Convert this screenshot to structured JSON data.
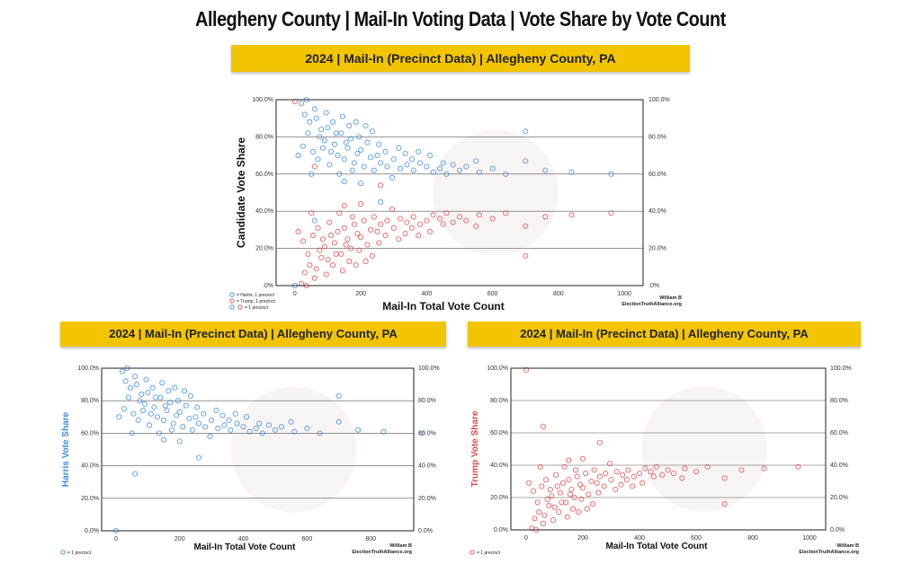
{
  "page_title": "Allegheny County | Mail-In Voting Data | Vote Share by Vote Count",
  "colors": {
    "harris": "#3a8be0",
    "trump": "#e04848",
    "banner": "#f2c500"
  },
  "chart_data": [
    {
      "type": "scatter",
      "title": "2024 | Mail-In (Precinct Data) | Allegheny County, PA",
      "xlabel": "Mail-In Total Vote Count",
      "ylabel": "Candidate Vote Share",
      "xlim": [
        -57,
        1057
      ],
      "ylim": [
        0,
        100
      ],
      "xticks": [
        "0",
        "200",
        "400",
        "600",
        "800",
        "1000"
      ],
      "xtick_values": [
        0,
        200,
        400,
        600,
        800,
        1000
      ],
      "yticks": [
        ".0%",
        "20.0%",
        "40.0%",
        "60.0%",
        "80.0%",
        "100.0%"
      ],
      "ytick_values": [
        0,
        20,
        40,
        60,
        80,
        100
      ],
      "series": [
        "harris",
        "trump"
      ],
      "legend": [
        "= Harris, 1 precinct",
        "= Trump, 1 precinct",
        "= 1 precinct"
      ],
      "legend_placement": "bottom-left",
      "credit": [
        "William B",
        "ElectionTruthAlliance.org"
      ]
    },
    {
      "type": "scatter",
      "title": "2024 | Mail-In (Precinct Data) | Allegheny County, PA",
      "xlabel": "Mail-In Total Vote Count",
      "ylabel": "Harris Vote Share",
      "xlim": [
        -45,
        935
      ],
      "ylim": [
        0,
        100
      ],
      "xticks": [
        "0",
        "200",
        "400",
        "600",
        "800"
      ],
      "xtick_values": [
        0,
        200,
        400,
        600,
        800
      ],
      "yticks": [
        "0.0%",
        "20.0%",
        "40.0%",
        "60.0%",
        "80.0%",
        "100.0%"
      ],
      "ytick_values": [
        0,
        20,
        40,
        60,
        80,
        100
      ],
      "series": [
        "harris"
      ],
      "legend": [
        "= 1 precinct"
      ],
      "legend_placement": "bottom-left",
      "credit": [
        "William B",
        "ElectionTruthAlliance.org"
      ]
    },
    {
      "type": "scatter",
      "title": "2024 | Mail-In (Precinct Data) | Allegheny County, PA",
      "xlabel": "Mail-In Total Vote Count",
      "ylabel": "Trump Vote Share",
      "xlim": [
        -54,
        1057
      ],
      "ylim": [
        0,
        100
      ],
      "xticks": [
        "0",
        "200",
        "400",
        "600",
        "800",
        "1000"
      ],
      "xtick_values": [
        0,
        200,
        400,
        600,
        800,
        1000
      ],
      "yticks": [
        "0.0%",
        "20.0%",
        "40.0%",
        "60.0%",
        "80.0%",
        "100.0%"
      ],
      "ytick_values": [
        0,
        20,
        40,
        60,
        80,
        100
      ],
      "series": [
        "trump"
      ],
      "legend": [
        "= 1 precinct"
      ],
      "legend_placement": "bottom-left",
      "credit": [
        "William B",
        "ElectionTruthAlliance.org"
      ]
    }
  ],
  "points": {
    "harris": [
      [
        30,
        92
      ],
      [
        45,
        88
      ],
      [
        60,
        95
      ],
      [
        75,
        80
      ],
      [
        90,
        78
      ],
      [
        100,
        85
      ],
      [
        110,
        72
      ],
      [
        120,
        76
      ],
      [
        130,
        70
      ],
      [
        140,
        82
      ],
      [
        150,
        68
      ],
      [
        160,
        74
      ],
      [
        170,
        79
      ],
      [
        180,
        66
      ],
      [
        190,
        71
      ],
      [
        200,
        73
      ],
      [
        210,
        64
      ],
      [
        220,
        77
      ],
      [
        230,
        69
      ],
      [
        240,
        62
      ],
      [
        250,
        70
      ],
      [
        260,
        66
      ],
      [
        280,
        64
      ],
      [
        300,
        68
      ],
      [
        320,
        63
      ],
      [
        340,
        65
      ],
      [
        360,
        62
      ],
      [
        380,
        66
      ],
      [
        400,
        64
      ],
      [
        420,
        61
      ],
      [
        440,
        63
      ],
      [
        460,
        60
      ],
      [
        480,
        65
      ],
      [
        500,
        62
      ],
      [
        520,
        64
      ],
      [
        560,
        61
      ],
      [
        600,
        63
      ],
      [
        640,
        60
      ],
      [
        700,
        67
      ],
      [
        760,
        62
      ],
      [
        840,
        61
      ],
      [
        960,
        60
      ],
      [
        20,
        98
      ],
      [
        35,
        100
      ],
      [
        50,
        60
      ],
      [
        65,
        90
      ],
      [
        80,
        84
      ],
      [
        95,
        93
      ],
      [
        105,
        65
      ],
      [
        115,
        88
      ],
      [
        125,
        82
      ],
      [
        135,
        60
      ],
      [
        145,
        91
      ],
      [
        155,
        77
      ],
      [
        165,
        86
      ],
      [
        175,
        62
      ],
      [
        185,
        88
      ],
      [
        195,
        80
      ],
      [
        215,
        86
      ],
      [
        235,
        83
      ],
      [
        255,
        76
      ],
      [
        275,
        72
      ],
      [
        295,
        58
      ],
      [
        315,
        74
      ],
      [
        335,
        71
      ],
      [
        355,
        68
      ],
      [
        375,
        72
      ],
      [
        410,
        70
      ],
      [
        450,
        66
      ],
      [
        550,
        67
      ],
      [
        700,
        83
      ],
      [
        10,
        70
      ],
      [
        25,
        75
      ],
      [
        40,
        82
      ],
      [
        55,
        72
      ],
      [
        70,
        68
      ],
      [
        85,
        74
      ],
      [
        150,
        56
      ],
      [
        200,
        55
      ],
      [
        260,
        45
      ],
      [
        60,
        35
      ],
      [
        0,
        0
      ]
    ],
    "trump": [
      [
        30,
        7
      ],
      [
        45,
        11
      ],
      [
        60,
        4
      ],
      [
        75,
        19
      ],
      [
        90,
        21
      ],
      [
        100,
        14
      ],
      [
        110,
        27
      ],
      [
        120,
        23
      ],
      [
        130,
        29
      ],
      [
        140,
        17
      ],
      [
        150,
        31
      ],
      [
        160,
        25
      ],
      [
        170,
        20
      ],
      [
        180,
        33
      ],
      [
        190,
        28
      ],
      [
        200,
        26
      ],
      [
        210,
        35
      ],
      [
        220,
        22
      ],
      [
        230,
        30
      ],
      [
        240,
        37
      ],
      [
        250,
        29
      ],
      [
        260,
        33
      ],
      [
        280,
        35
      ],
      [
        300,
        31
      ],
      [
        320,
        36
      ],
      [
        340,
        34
      ],
      [
        360,
        37
      ],
      [
        380,
        33
      ],
      [
        400,
        35
      ],
      [
        420,
        38
      ],
      [
        440,
        36
      ],
      [
        460,
        39
      ],
      [
        480,
        34
      ],
      [
        500,
        37
      ],
      [
        520,
        35
      ],
      [
        560,
        38
      ],
      [
        600,
        36
      ],
      [
        640,
        39
      ],
      [
        700,
        32
      ],
      [
        760,
        37
      ],
      [
        840,
        38
      ],
      [
        960,
        39
      ],
      [
        20,
        1
      ],
      [
        35,
        0
      ],
      [
        50,
        39
      ],
      [
        65,
        9
      ],
      [
        80,
        15
      ],
      [
        95,
        6
      ],
      [
        105,
        34
      ],
      [
        115,
        11
      ],
      [
        125,
        17
      ],
      [
        135,
        39
      ],
      [
        145,
        8
      ],
      [
        155,
        22
      ],
      [
        165,
        13
      ],
      [
        175,
        37
      ],
      [
        185,
        11
      ],
      [
        195,
        19
      ],
      [
        215,
        13
      ],
      [
        235,
        16
      ],
      [
        255,
        23
      ],
      [
        275,
        27
      ],
      [
        295,
        41
      ],
      [
        315,
        25
      ],
      [
        335,
        28
      ],
      [
        355,
        31
      ],
      [
        375,
        27
      ],
      [
        410,
        29
      ],
      [
        450,
        33
      ],
      [
        550,
        32
      ],
      [
        700,
        16
      ],
      [
        10,
        29
      ],
      [
        25,
        24
      ],
      [
        40,
        17
      ],
      [
        55,
        27
      ],
      [
        70,
        31
      ],
      [
        85,
        25
      ],
      [
        150,
        43
      ],
      [
        200,
        44
      ],
      [
        260,
        54
      ],
      [
        60,
        64
      ],
      [
        0,
        99
      ]
    ]
  }
}
